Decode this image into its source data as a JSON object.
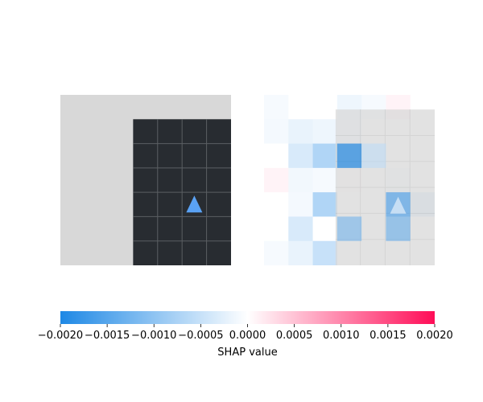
{
  "chart_data": {
    "type": "heatmap",
    "title": "",
    "colors": {
      "negative": "#1e88e5",
      "neutral": "#ffffff",
      "positive": "#ff0d57",
      "image_background": "#d8d8d8",
      "grid_floor": "#282c31",
      "grid_line": "#5b5f63",
      "agent_marker": "#5aa2f4"
    },
    "input_image": {
      "grid_rows": 6,
      "grid_cols": 7,
      "agent": {
        "row": 3,
        "col": 5,
        "shape": "triangle-up"
      },
      "floor_region": {
        "row_start": 1,
        "row_end": 6,
        "col_start": 3,
        "col_end": 7
      }
    },
    "shap_map": {
      "rows": 7,
      "cols": 7,
      "overlay_region": {
        "row_start": 0.6,
        "row_end": 7,
        "col_start": 3,
        "col_end": 7,
        "opacity": 0.85
      },
      "values": [
        [
          -8e-05,
          0.0,
          0.0,
          -0.00015,
          -8e-05,
          0.0001,
          0.0
        ],
        [
          -0.0001,
          -0.0002,
          -0.00015,
          -0.00012,
          0.0,
          0.0,
          0.0
        ],
        [
          0.0,
          -0.00035,
          -0.0007,
          -0.002,
          -0.0005,
          0.0,
          0.0
        ],
        [
          0.0001,
          -0.00012,
          -8e-05,
          5e-05,
          0.0,
          -8e-05,
          0.0
        ],
        [
          0.0,
          -0.0001,
          -0.0007,
          0.0,
          0.0,
          -0.0015,
          -0.0003
        ],
        [
          0.0,
          -0.00035,
          0.0,
          -0.0011,
          0.0,
          -0.0012,
          0.0
        ],
        [
          -8e-05,
          -0.0002,
          -0.0005,
          0.0,
          0.0,
          0.0,
          0.0
        ]
      ]
    },
    "colorbar": {
      "vmin": -0.002,
      "vmax": 0.002,
      "ticks": [
        "−0.0020",
        "−0.0015",
        "−0.0010",
        "−0.0005",
        "0.0000",
        "0.0005",
        "0.0010",
        "0.0015",
        "0.0020"
      ],
      "label": "SHAP value"
    }
  }
}
